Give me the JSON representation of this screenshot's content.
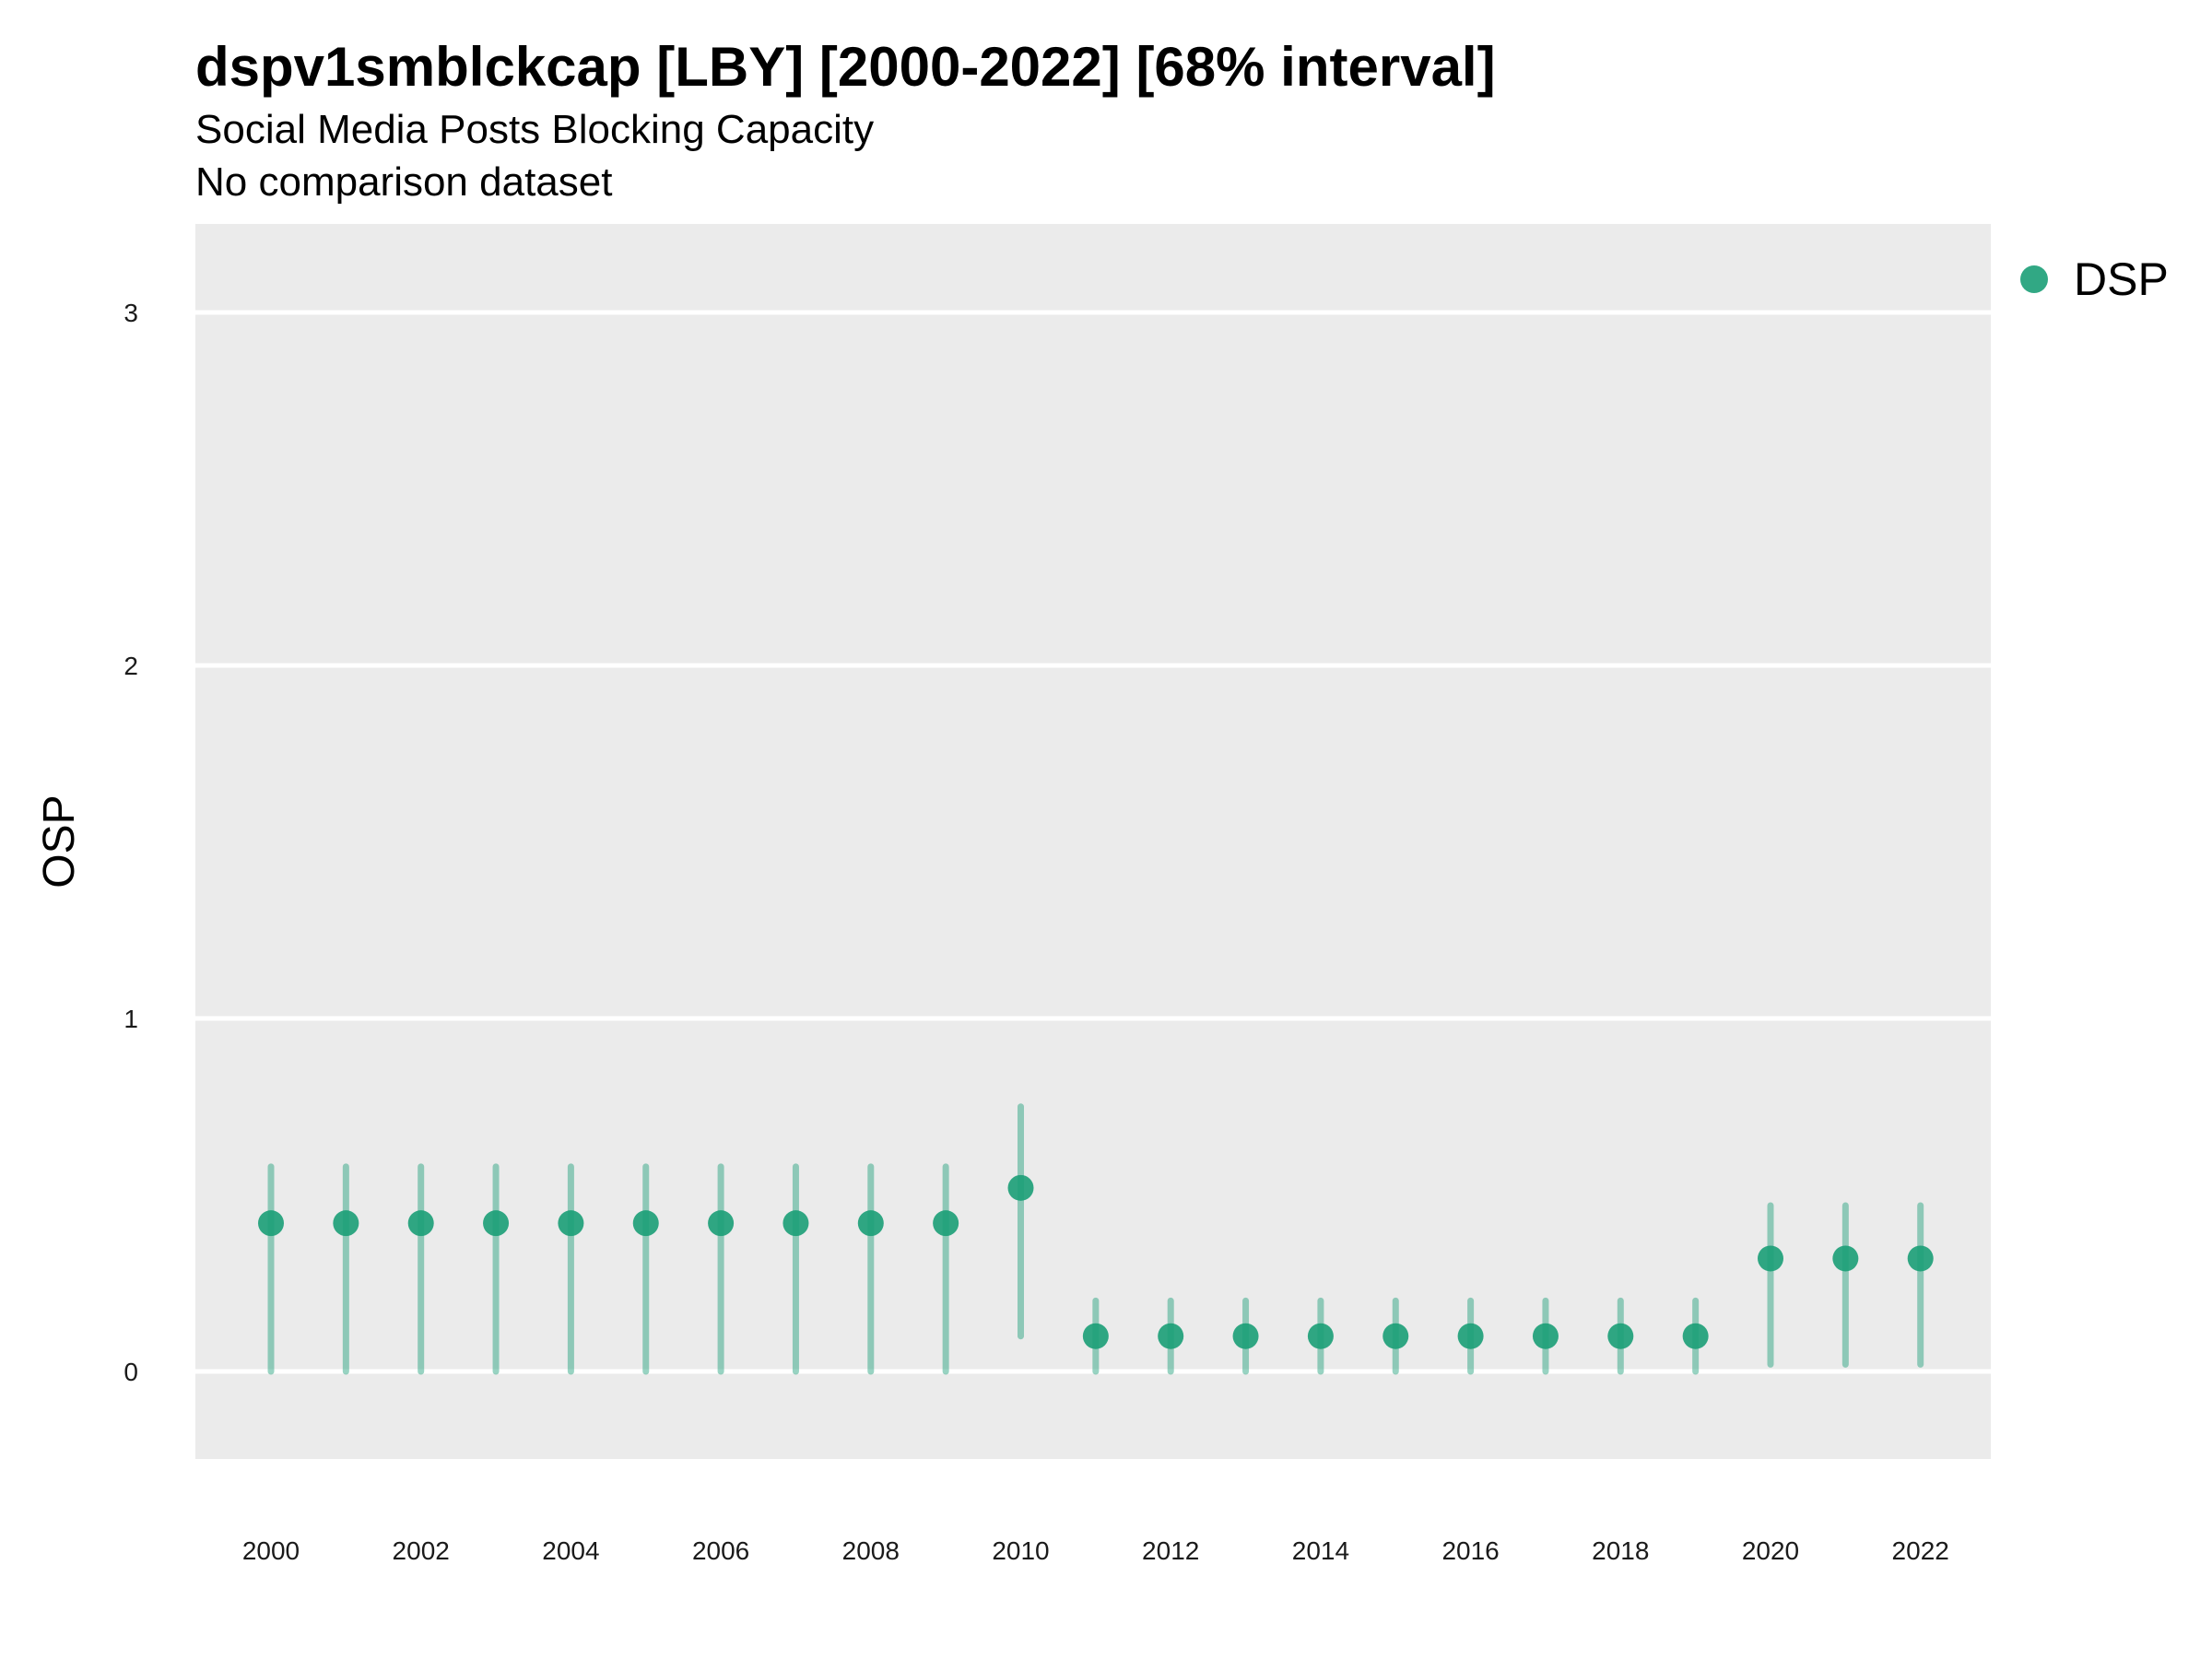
{
  "header": {
    "title": "dspv1smblckcap [LBY] [2000-2022] [68% interval]",
    "subtitle": "Social Media Posts Blocking Capacity",
    "note": "No comparison dataset"
  },
  "chart_data": {
    "type": "scatter",
    "title": "dspv1smblckcap [LBY] [2000-2022] [68% interval]",
    "subtitle": "Social Media Posts Blocking Capacity",
    "xlabel": "",
    "ylabel": "OSP",
    "ylim": [
      -0.25,
      3.25
    ],
    "xlim": [
      1999,
      2023
    ],
    "yticks": [
      0,
      1,
      2,
      3
    ],
    "xticks": [
      2000,
      2002,
      2004,
      2006,
      2008,
      2010,
      2012,
      2014,
      2016,
      2018,
      2020,
      2022
    ],
    "grid": true,
    "legend_position": "top-right",
    "colors": {
      "series": "#1b9e77",
      "panel": "#ebebeb",
      "grid": "#ffffff"
    },
    "series": [
      {
        "name": "DSP",
        "points": [
          {
            "x": 2000,
            "y": 0.42,
            "lo": 0.0,
            "hi": 0.58
          },
          {
            "x": 2001,
            "y": 0.42,
            "lo": 0.0,
            "hi": 0.58
          },
          {
            "x": 2002,
            "y": 0.42,
            "lo": 0.0,
            "hi": 0.58
          },
          {
            "x": 2003,
            "y": 0.42,
            "lo": 0.0,
            "hi": 0.58
          },
          {
            "x": 2004,
            "y": 0.42,
            "lo": 0.0,
            "hi": 0.58
          },
          {
            "x": 2005,
            "y": 0.42,
            "lo": 0.0,
            "hi": 0.58
          },
          {
            "x": 2006,
            "y": 0.42,
            "lo": 0.0,
            "hi": 0.58
          },
          {
            "x": 2007,
            "y": 0.42,
            "lo": 0.0,
            "hi": 0.58
          },
          {
            "x": 2008,
            "y": 0.42,
            "lo": 0.0,
            "hi": 0.58
          },
          {
            "x": 2009,
            "y": 0.42,
            "lo": 0.0,
            "hi": 0.58
          },
          {
            "x": 2010,
            "y": 0.52,
            "lo": 0.1,
            "hi": 0.75
          },
          {
            "x": 2011,
            "y": 0.1,
            "lo": 0.0,
            "hi": 0.2
          },
          {
            "x": 2012,
            "y": 0.1,
            "lo": 0.0,
            "hi": 0.2
          },
          {
            "x": 2013,
            "y": 0.1,
            "lo": 0.0,
            "hi": 0.2
          },
          {
            "x": 2014,
            "y": 0.1,
            "lo": 0.0,
            "hi": 0.2
          },
          {
            "x": 2015,
            "y": 0.1,
            "lo": 0.0,
            "hi": 0.2
          },
          {
            "x": 2016,
            "y": 0.1,
            "lo": 0.0,
            "hi": 0.2
          },
          {
            "x": 2017,
            "y": 0.1,
            "lo": 0.0,
            "hi": 0.2
          },
          {
            "x": 2018,
            "y": 0.1,
            "lo": 0.0,
            "hi": 0.2
          },
          {
            "x": 2019,
            "y": 0.1,
            "lo": 0.0,
            "hi": 0.2
          },
          {
            "x": 2020,
            "y": 0.32,
            "lo": 0.02,
            "hi": 0.47
          },
          {
            "x": 2021,
            "y": 0.32,
            "lo": 0.02,
            "hi": 0.47
          },
          {
            "x": 2022,
            "y": 0.32,
            "lo": 0.02,
            "hi": 0.47
          }
        ]
      }
    ]
  }
}
